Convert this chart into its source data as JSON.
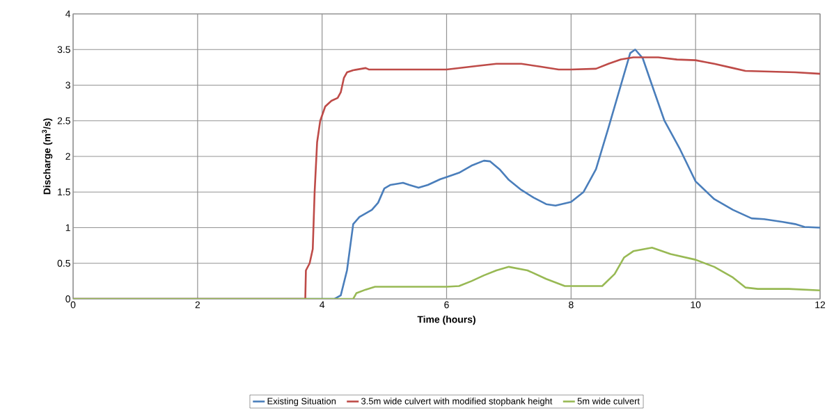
{
  "chart_data": {
    "type": "line",
    "xlabel": "Time (hours)",
    "ylabel": "Discharge (m$^{3}$/s)",
    "xlim": [
      0,
      12
    ],
    "xticks": [
      0,
      2,
      4,
      6,
      8,
      10,
      12
    ],
    "ylim": [
      0,
      4
    ],
    "yticks": [
      0,
      0.5,
      1,
      1.5,
      2,
      2.5,
      3,
      3.5,
      4
    ],
    "grid": true,
    "legend": "bottom",
    "marker": "none",
    "line_style": "solid",
    "series": [
      {
        "name": "Existing Situation",
        "color": "#4a7ebb",
        "x": [
          0,
          4.2,
          4.3,
          4.4,
          4.5,
          4.6,
          4.8,
          4.9,
          5.0,
          5.1,
          5.3,
          5.4,
          5.55,
          5.7,
          5.9,
          6.0,
          6.2,
          6.4,
          6.6,
          6.7,
          6.85,
          7.0,
          7.2,
          7.4,
          7.6,
          7.75,
          8.0,
          8.2,
          8.4,
          8.6,
          8.8,
          8.95,
          9.03,
          9.15,
          9.3,
          9.5,
          9.75,
          10.0,
          10.3,
          10.6,
          10.9,
          11.1,
          11.4,
          11.6,
          11.75,
          12
        ],
        "values": [
          0,
          0,
          0.05,
          0.4,
          1.05,
          1.15,
          1.25,
          1.35,
          1.55,
          1.6,
          1.63,
          1.6,
          1.56,
          1.6,
          1.68,
          1.71,
          1.77,
          1.87,
          1.94,
          1.93,
          1.82,
          1.67,
          1.53,
          1.42,
          1.33,
          1.31,
          1.36,
          1.5,
          1.82,
          2.4,
          3.0,
          3.45,
          3.5,
          3.38,
          3.0,
          2.5,
          2.1,
          1.65,
          1.4,
          1.25,
          1.13,
          1.12,
          1.08,
          1.05,
          1.01,
          1.0
        ]
      },
      {
        "name": "3.5m wide culvert with modified stopbank height",
        "color": "#be4b48",
        "x": [
          0,
          3.73,
          3.74,
          3.8,
          3.85,
          3.88,
          3.92,
          3.97,
          4.05,
          4.15,
          4.25,
          4.3,
          4.35,
          4.4,
          4.5,
          4.7,
          4.75,
          6.0,
          6.5,
          6.8,
          7.2,
          7.5,
          7.8,
          8.0,
          8.4,
          8.6,
          8.8,
          9.0,
          9.4,
          9.7,
          10.0,
          10.3,
          10.6,
          10.8,
          11.2,
          11.6,
          12
        ],
        "values": [
          0,
          0,
          0.4,
          0.5,
          0.7,
          1.5,
          2.2,
          2.5,
          2.7,
          2.78,
          2.82,
          2.9,
          3.1,
          3.18,
          3.21,
          3.24,
          3.22,
          3.22,
          3.27,
          3.3,
          3.3,
          3.26,
          3.22,
          3.22,
          3.23,
          3.3,
          3.36,
          3.39,
          3.39,
          3.36,
          3.35,
          3.3,
          3.24,
          3.2,
          3.19,
          3.18,
          3.16
        ]
      },
      {
        "name": "5m wide culvert",
        "color": "#98b954",
        "x": [
          0,
          4.5,
          4.55,
          4.7,
          4.85,
          6.0,
          6.2,
          6.4,
          6.6,
          6.8,
          7.0,
          7.3,
          7.6,
          7.9,
          8.5,
          8.7,
          8.85,
          9.0,
          9.3,
          9.6,
          10.0,
          10.3,
          10.6,
          10.8,
          11.0,
          11.5,
          12
        ],
        "values": [
          0,
          0,
          0.08,
          0.13,
          0.17,
          0.17,
          0.18,
          0.25,
          0.33,
          0.4,
          0.45,
          0.4,
          0.28,
          0.18,
          0.18,
          0.35,
          0.58,
          0.67,
          0.72,
          0.63,
          0.55,
          0.45,
          0.3,
          0.16,
          0.14,
          0.14,
          0.12
        ]
      }
    ]
  }
}
